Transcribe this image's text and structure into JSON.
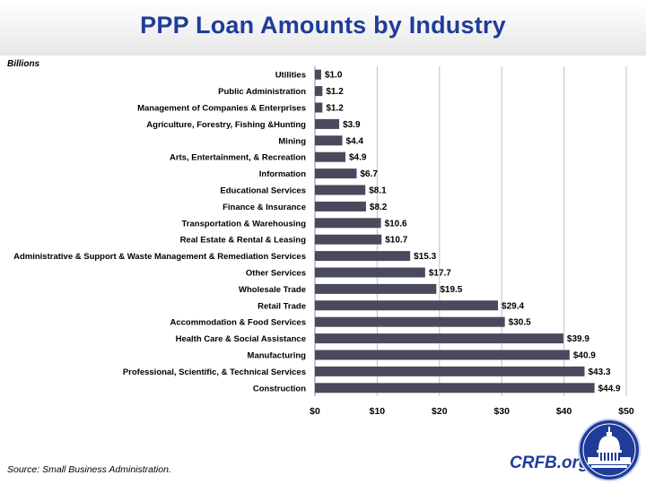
{
  "header": {
    "title": "PPP Loan Amounts by Industry"
  },
  "chart_data": {
    "type": "bar",
    "orientation": "horizontal",
    "title": "PPP Loan Amounts by Industry",
    "unit_label": "Billions",
    "categories": [
      "Utilities",
      "Public Administration",
      "Management of Companies & Enterprises",
      "Agriculture, Forestry, Fishing &Hunting",
      "Mining",
      "Arts, Entertainment, & Recreation",
      "Information",
      "Educational Services",
      "Finance & Insurance",
      "Transportation & Warehousing",
      "Real Estate & Rental & Leasing",
      "Administrative & Support & Waste Management & Remediation Services",
      "Other Services",
      "Wholesale Trade",
      "Retail Trade",
      "Accommodation & Food Services",
      "Health Care & Social Assistance",
      "Manufacturing",
      "Professional, Scientific, & Technical Services",
      "Construction"
    ],
    "values": [
      1.0,
      1.2,
      1.2,
      3.9,
      4.4,
      4.9,
      6.7,
      8.1,
      8.2,
      10.6,
      10.7,
      15.3,
      17.7,
      19.5,
      29.4,
      30.5,
      39.9,
      40.9,
      43.3,
      44.9
    ],
    "value_labels": [
      "$1.0",
      "$1.2",
      "$1.2",
      "$3.9",
      "$4.4",
      "$4.9",
      "$6.7",
      "$8.1",
      "$8.2",
      "$10.6",
      "$10.7",
      "$15.3",
      "$17.7",
      "$19.5",
      "$29.4",
      "$30.5",
      "$39.9",
      "$40.9",
      "$43.3",
      "$44.9"
    ],
    "xlim": [
      0,
      50
    ],
    "xticks": [
      "$0",
      "$10",
      "$20",
      "$30",
      "$40",
      "$50"
    ],
    "grid": true,
    "bar_color": "#4a4a5e",
    "grid_color": "#bfbfbf"
  },
  "footer": {
    "source": "Source: Small Business Administration.",
    "brand": "CRFB.org"
  },
  "colors": {
    "title": "#1f3c99",
    "logo": "#1f3c99"
  },
  "icons": {
    "logo": "capitol-dome-logo-icon"
  }
}
